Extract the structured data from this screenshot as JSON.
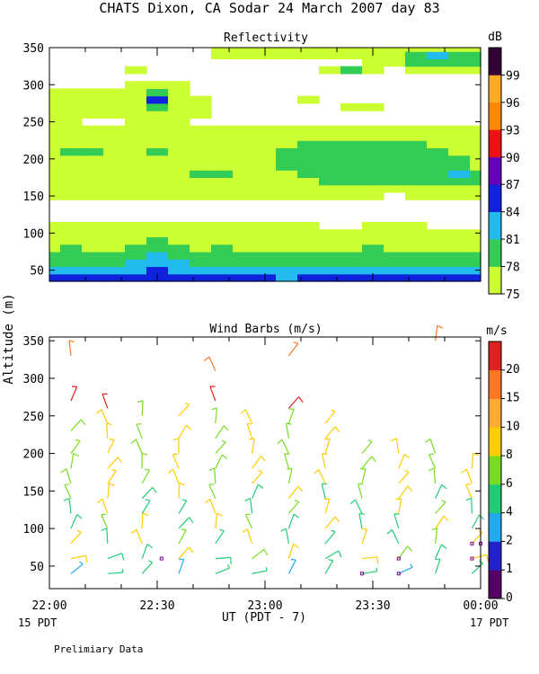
{
  "title": "CHATS Dixon, CA  Sodar  24 March 2007  day  83",
  "shared_ylabel": "Altitude (m)",
  "footer_note": "Prelimiary Data",
  "x_axis": {
    "ticks": [
      {
        "hour": 0,
        "label": "22:00"
      },
      {
        "hour": 0.5,
        "label": "22:30"
      },
      {
        "hour": 1,
        "label": "23:00"
      },
      {
        "hour": 1.5,
        "label": "23:30"
      },
      {
        "hour": 2,
        "label": "00:00"
      }
    ],
    "xlabel": "UT  (PDT - 7)",
    "start_note": "15 PDT",
    "end_note": "17 PDT"
  },
  "chart_data": [
    {
      "type": "heatmap",
      "title": "Reflectivity",
      "unit_label": "dB",
      "ylim": [
        35,
        350
      ],
      "yticks": [
        50,
        100,
        150,
        200,
        250,
        300,
        350
      ],
      "colorbar": {
        "labels": [
          "75",
          "78",
          "81",
          "84",
          "87",
          "90",
          "93",
          "96",
          "99"
        ],
        "colors": [
          "#ccff33",
          "#33cc55",
          "#22bbee",
          "#1122dd",
          "#6600bb",
          "#ee1111",
          "#ff8800",
          "#ffaa22",
          "#330033"
        ]
      },
      "x_hours": [
        0,
        0.1,
        0.2,
        0.3,
        0.4,
        0.5,
        0.6,
        0.7,
        0.8,
        0.9,
        1.0,
        1.1,
        1.2,
        1.3,
        1.4,
        1.5,
        1.6,
        1.7,
        1.8,
        1.9,
        2.0
      ],
      "y_alt": [
        40,
        50,
        60,
        70,
        80,
        90,
        100,
        110,
        120,
        130,
        140,
        150,
        160,
        170,
        180,
        190,
        200,
        210,
        220,
        230,
        240,
        250,
        260,
        270,
        280,
        290,
        300,
        310,
        320,
        330,
        340,
        350
      ],
      "class_rows": [
        [
          3,
          3,
          3,
          3,
          3,
          3,
          3,
          3,
          3,
          3,
          3,
          2,
          3,
          3,
          3,
          3,
          3,
          3,
          3,
          3,
          3
        ],
        [
          2,
          2,
          2,
          2,
          2,
          3,
          2,
          2,
          2,
          2,
          2,
          2,
          2,
          2,
          2,
          2,
          2,
          2,
          2,
          2,
          2
        ],
        [
          1,
          1,
          1,
          1,
          2,
          2,
          2,
          1,
          1,
          1,
          1,
          1,
          1,
          1,
          1,
          1,
          1,
          1,
          1,
          1,
          1
        ],
        [
          1,
          1,
          1,
          1,
          1,
          2,
          1,
          1,
          1,
          1,
          1,
          1,
          1,
          1,
          1,
          1,
          1,
          1,
          1,
          1,
          1
        ],
        [
          0,
          1,
          0,
          0,
          1,
          1,
          1,
          0,
          1,
          0,
          0,
          0,
          0,
          0,
          0,
          1,
          0,
          0,
          0,
          0,
          0
        ],
        [
          0,
          0,
          0,
          0,
          0,
          1,
          0,
          0,
          0,
          0,
          0,
          0,
          0,
          0,
          0,
          0,
          0,
          0,
          0,
          0,
          0
        ],
        [
          0,
          0,
          0,
          0,
          0,
          0,
          0,
          0,
          0,
          0,
          0,
          0,
          0,
          0,
          0,
          0,
          0,
          0,
          0,
          0,
          0
        ],
        [
          0,
          0,
          0,
          0,
          0,
          0,
          0,
          0,
          0,
          0,
          0,
          0,
          0,
          -1,
          -1,
          0,
          0,
          0,
          -1,
          -1,
          -1
        ],
        [
          -1,
          -1,
          -1,
          -1,
          -1,
          -1,
          -1,
          -1,
          -1,
          -1,
          -1,
          -1,
          -1,
          -1,
          -1,
          -1,
          -1,
          -1,
          -1,
          -1,
          -1
        ],
        [
          -1,
          -1,
          -1,
          -1,
          -1,
          -1,
          -1,
          -1,
          -1,
          -1,
          -1,
          -1,
          -1,
          -1,
          -1,
          -1,
          -1,
          -1,
          -1,
          -1,
          -1
        ],
        [
          -1,
          -1,
          -1,
          -1,
          -1,
          -1,
          -1,
          -1,
          -1,
          -1,
          -1,
          -1,
          -1,
          -1,
          -1,
          -1,
          -1,
          -1,
          -1,
          -1,
          -1
        ],
        [
          0,
          0,
          0,
          0,
          0,
          0,
          0,
          0,
          0,
          0,
          0,
          0,
          0,
          0,
          0,
          0,
          -1,
          0,
          0,
          0,
          0
        ],
        [
          0,
          0,
          0,
          0,
          0,
          0,
          0,
          0,
          0,
          0,
          0,
          0,
          0,
          0,
          0,
          0,
          0,
          0,
          0,
          0,
          0
        ],
        [
          0,
          0,
          0,
          0,
          0,
          0,
          0,
          0,
          0,
          0,
          0,
          0,
          0,
          1,
          1,
          1,
          1,
          1,
          1,
          1,
          1
        ],
        [
          0,
          0,
          0,
          0,
          0,
          0,
          0,
          1,
          1,
          0,
          0,
          0,
          1,
          1,
          1,
          1,
          1,
          1,
          1,
          2,
          1
        ],
        [
          0,
          0,
          0,
          0,
          0,
          0,
          0,
          0,
          0,
          0,
          0,
          1,
          1,
          1,
          1,
          1,
          1,
          1,
          1,
          1,
          0
        ],
        [
          0,
          0,
          0,
          0,
          0,
          0,
          0,
          0,
          0,
          0,
          0,
          1,
          1,
          1,
          1,
          1,
          1,
          1,
          1,
          1,
          0
        ],
        [
          0,
          1,
          1,
          0,
          0,
          1,
          0,
          0,
          0,
          0,
          0,
          1,
          1,
          1,
          1,
          1,
          1,
          1,
          1,
          0,
          0
        ],
        [
          0,
          0,
          0,
          0,
          0,
          0,
          0,
          0,
          0,
          0,
          0,
          0,
          1,
          1,
          1,
          1,
          1,
          1,
          0,
          0,
          0
        ],
        [
          0,
          0,
          0,
          0,
          0,
          0,
          0,
          0,
          0,
          0,
          0,
          0,
          0,
          0,
          0,
          0,
          0,
          0,
          0,
          0,
          0
        ],
        [
          0,
          0,
          0,
          0,
          0,
          0,
          0,
          0,
          0,
          0,
          0,
          0,
          0,
          0,
          0,
          0,
          0,
          0,
          0,
          0,
          0
        ],
        [
          0,
          0,
          -1,
          -1,
          0,
          0,
          0,
          -1,
          -1,
          -1,
          -1,
          -1,
          -1,
          -1,
          -1,
          -1,
          -1,
          -1,
          -1,
          -1,
          -1
        ],
        [
          0,
          0,
          0,
          0,
          0,
          0,
          0,
          0,
          -1,
          -1,
          -1,
          -1,
          -1,
          -1,
          -1,
          -1,
          -1,
          -1,
          -1,
          -1,
          -1
        ],
        [
          0,
          0,
          0,
          0,
          0,
          1,
          0,
          0,
          -1,
          -1,
          -1,
          -1,
          -1,
          -1,
          0,
          0,
          -1,
          -1,
          -1,
          -1,
          -1
        ],
        [
          0,
          0,
          0,
          0,
          0,
          3,
          0,
          0,
          -1,
          -1,
          -1,
          -1,
          0,
          -1,
          -1,
          -1,
          -1,
          -1,
          -1,
          -1,
          -1
        ],
        [
          0,
          0,
          0,
          0,
          0,
          1,
          0,
          -1,
          -1,
          -1,
          -1,
          -1,
          -1,
          -1,
          -1,
          -1,
          -1,
          -1,
          -1,
          -1,
          -1
        ],
        [
          -1,
          -1,
          -1,
          -1,
          0,
          0,
          0,
          -1,
          -1,
          -1,
          -1,
          -1,
          -1,
          -1,
          -1,
          -1,
          -1,
          -1,
          -1,
          -1,
          -1
        ],
        [
          -1,
          -1,
          -1,
          -1,
          -1,
          -1,
          -1,
          -1,
          -1,
          -1,
          -1,
          -1,
          -1,
          -1,
          -1,
          -1,
          -1,
          -1,
          -1,
          -1,
          -1
        ],
        [
          -1,
          -1,
          -1,
          -1,
          0,
          -1,
          -1,
          -1,
          -1,
          -1,
          -1,
          -1,
          -1,
          0,
          1,
          0,
          -1,
          0,
          0,
          0,
          0
        ],
        [
          -1,
          -1,
          -1,
          -1,
          -1,
          -1,
          -1,
          -1,
          -1,
          -1,
          -1,
          -1,
          -1,
          -1,
          -1,
          0,
          0,
          1,
          1,
          1,
          1
        ],
        [
          -1,
          -1,
          -1,
          -1,
          -1,
          -1,
          -1,
          -1,
          0,
          0,
          0,
          0,
          0,
          0,
          0,
          0,
          0,
          1,
          2,
          1,
          1
        ],
        [
          -1,
          -1,
          -1,
          -1,
          -1,
          -1,
          -1,
          -1,
          0,
          0,
          0,
          0,
          0,
          0,
          0,
          0,
          0,
          0,
          0,
          0,
          0
        ]
      ]
    },
    {
      "type": "scatter",
      "title": "Wind Barbs (m/s)",
      "unit_label": "m/s",
      "ylim": [
        20,
        355
      ],
      "yticks": [
        50,
        100,
        150,
        200,
        250,
        300,
        350
      ],
      "colorbar": {
        "labels": [
          "0",
          "1",
          "2",
          "4",
          "6",
          "8",
          "10",
          "15",
          "20"
        ],
        "colors": [
          "#550066",
          "#2222cc",
          "#22aaee",
          "#22cc77",
          "#77dd22",
          "#ffcc00",
          "#ffaa33",
          "#ff7722",
          "#dd2222"
        ]
      },
      "columns": [
        {
          "hour": 0.1,
          "alts": [
            40,
            60,
            80,
            100,
            120,
            140,
            160,
            180,
            200,
            230,
            270,
            330
          ]
        },
        {
          "hour": 0.27,
          "alts": [
            40,
            60,
            80,
            100,
            120,
            140,
            160,
            180,
            200,
            220,
            240,
            260
          ]
        },
        {
          "hour": 0.43,
          "alts": [
            40,
            60,
            80,
            100,
            120,
            140,
            160,
            180,
            200,
            220,
            250
          ]
        },
        {
          "hour": 0.6,
          "alts": [
            40,
            60,
            80,
            100,
            120,
            140,
            160,
            180,
            200,
            220,
            250
          ]
        },
        {
          "hour": 0.77,
          "alts": [
            40,
            60,
            80,
            100,
            120,
            140,
            160,
            180,
            200,
            220,
            240,
            270,
            310
          ]
        },
        {
          "hour": 0.94,
          "alts": [
            40,
            60,
            80,
            100,
            120,
            140,
            160,
            180,
            200,
            220,
            240
          ]
        },
        {
          "hour": 1.11,
          "alts": [
            40,
            60,
            80,
            100,
            120,
            140,
            160,
            180,
            200,
            220,
            240,
            260,
            330
          ]
        },
        {
          "hour": 1.28,
          "alts": [
            40,
            60,
            80,
            100,
            120,
            140,
            160,
            180,
            200,
            220,
            240
          ]
        },
        {
          "hour": 1.45,
          "alts": [
            40,
            60,
            80,
            100,
            120,
            140,
            160,
            180,
            200
          ]
        },
        {
          "hour": 1.62,
          "alts": [
            40,
            60,
            80,
            100,
            120,
            140,
            160,
            180,
            200
          ]
        },
        {
          "hour": 1.79,
          "alts": [
            40,
            60,
            80,
            100,
            120,
            140,
            160,
            180,
            200,
            350
          ]
        },
        {
          "hour": 1.96,
          "alts": [
            40,
            60,
            80,
            100,
            120,
            140,
            160,
            180
          ]
        }
      ]
    }
  ]
}
